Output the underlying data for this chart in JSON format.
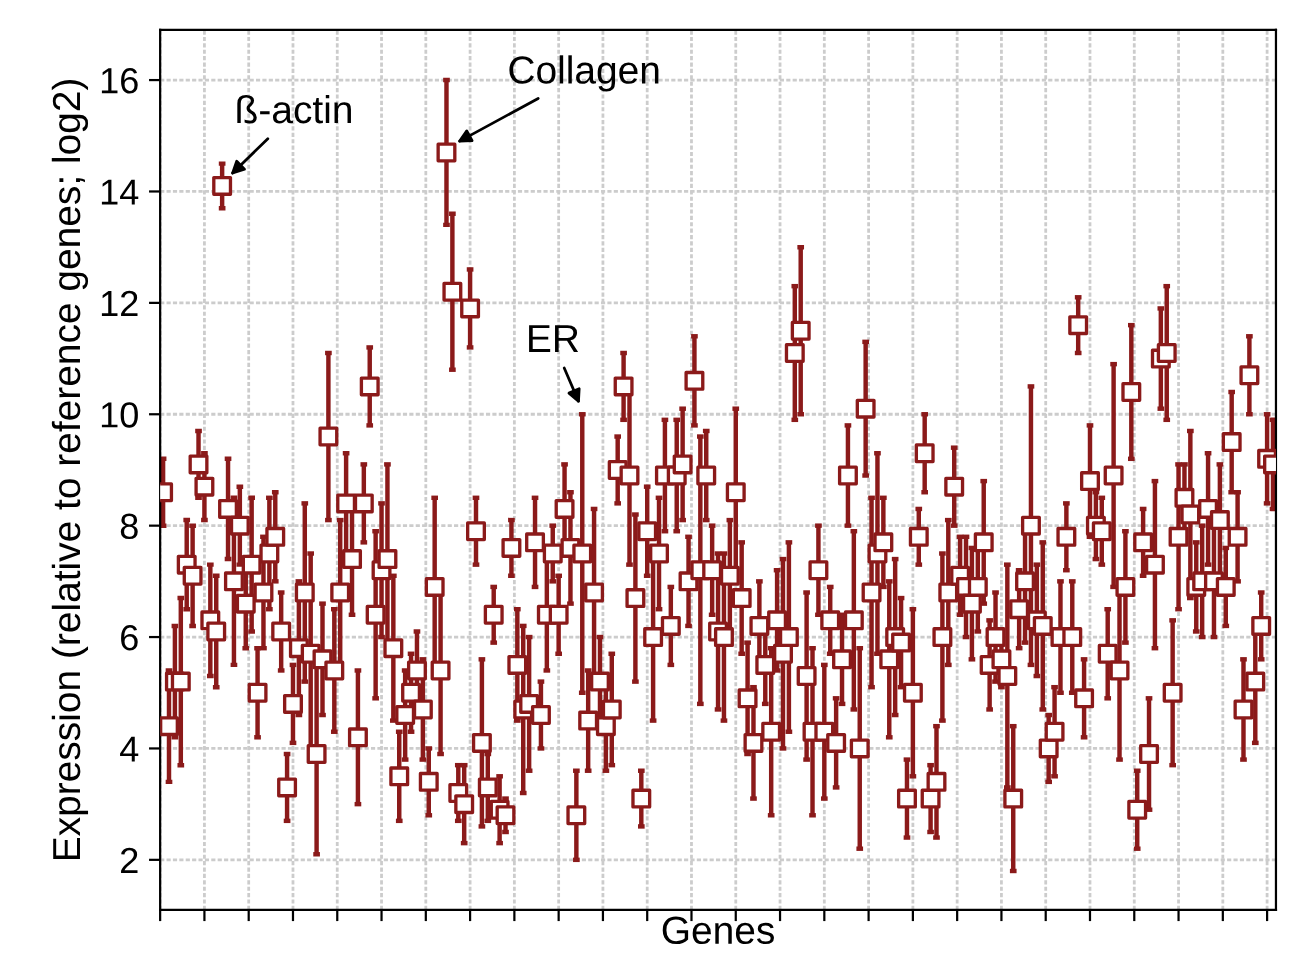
{
  "chart_data": {
    "type": "scatter",
    "xlabel": "Genes",
    "ylabel": "Expression (relative to reference genes; log2)",
    "categories": [
      null,
      null,
      null,
      null,
      null,
      null,
      null,
      null,
      null,
      null,
      null,
      null,
      null,
      null,
      null,
      null,
      null,
      null,
      null,
      null,
      null,
      null,
      null,
      null,
      null,
      null,
      null,
      null,
      null,
      null,
      null,
      null,
      null,
      null,
      null,
      null,
      null,
      null,
      null,
      null,
      null,
      null,
      null,
      null,
      null,
      null,
      null,
      null,
      null,
      null,
      null,
      null,
      null,
      null,
      null,
      null,
      null,
      null,
      null,
      null,
      null,
      null,
      null,
      null,
      null,
      null,
      null,
      null,
      null,
      null,
      null,
      null,
      null,
      null,
      null,
      null,
      null,
      null,
      null,
      null,
      null,
      null,
      null,
      null,
      null,
      null,
      null,
      null,
      null,
      null,
      null,
      null,
      null,
      null,
      null,
      null,
      null,
      null,
      null,
      null,
      null,
      null,
      null,
      null,
      null,
      null,
      null,
      null,
      null,
      null,
      null,
      null,
      null,
      null,
      null,
      null,
      null,
      null,
      null,
      null,
      null,
      null,
      null,
      null,
      null,
      null,
      null,
      null,
      null,
      null,
      null,
      null,
      null,
      null,
      null,
      null,
      null,
      null,
      null,
      null,
      null,
      null,
      null,
      null,
      null,
      null,
      null,
      null,
      null,
      null,
      null,
      null,
      null,
      null,
      null,
      null,
      null,
      null,
      null,
      null,
      null,
      null,
      null,
      null,
      null,
      null,
      null,
      null,
      null,
      null,
      null,
      null,
      null,
      null,
      null,
      null,
      null,
      null,
      null,
      null,
      null,
      null,
      null,
      null,
      null,
      null,
      null,
      null,
      null
    ],
    "series": [
      {
        "color": "#8b1a1a",
        "values": [
          8.6,
          4.4,
          5.2,
          5.2,
          7.3,
          7.1,
          9.1,
          8.7,
          6.3,
          6.1,
          14.1,
          8.3,
          7.0,
          8.0,
          6.6,
          7.3,
          5.0,
          6.8,
          7.5,
          7.8,
          6.1,
          3.3,
          4.8,
          5.8,
          6.8,
          5.7,
          3.9,
          5.6,
          9.6,
          5.4,
          6.8,
          8.4,
          7.4,
          4.2,
          8.4,
          10.5,
          6.4,
          7.2,
          7.4,
          5.8,
          3.5,
          4.6,
          5.0,
          5.4,
          4.7,
          3.4,
          6.9,
          5.4,
          14.7,
          12.2,
          3.2,
          3.0,
          11.9,
          7.9,
          4.1,
          3.3,
          6.4,
          2.9,
          2.8,
          7.6,
          5.5,
          4.7,
          4.8,
          7.7,
          4.6,
          6.4,
          7.5,
          6.4,
          8.3,
          7.6,
          2.8,
          7.5,
          4.5,
          6.8,
          5.2,
          4.4,
          4.7,
          9.0,
          10.5,
          8.9,
          6.7,
          3.1,
          7.9,
          6.0,
          7.5,
          8.9,
          6.2,
          8.9,
          9.1,
          7.0,
          10.6,
          7.2,
          8.9,
          7.2,
          6.1,
          6.0,
          7.1,
          8.6,
          6.7,
          4.9,
          4.1,
          6.2,
          5.5,
          4.3,
          6.3,
          5.7,
          6.0,
          11.1,
          11.5,
          5.3,
          4.3,
          7.2,
          4.3,
          6.3,
          4.1,
          5.6,
          8.9,
          6.3,
          4.0,
          10.1,
          6.8,
          7.5,
          7.7,
          5.6,
          6.0,
          5.9,
          3.1,
          5.0,
          7.8,
          9.3,
          3.1,
          3.4,
          6.0,
          6.8,
          8.7,
          7.1,
          6.9,
          6.6,
          6.9,
          7.7,
          5.5,
          6.0,
          5.6,
          5.3,
          3.1,
          6.5,
          7.0,
          8.0,
          6.3,
          6.2,
          4.0,
          4.3,
          6.0,
          7.8,
          6.0,
          11.6,
          4.9,
          8.8,
          8.0,
          7.9,
          5.7,
          8.9,
          5.4,
          6.9,
          10.4,
          2.9,
          7.7,
          3.9,
          7.3,
          11.0,
          11.1,
          5.0,
          7.8,
          8.5,
          8.2,
          6.9,
          7.0,
          8.3,
          7.0,
          8.1,
          6.9,
          9.5,
          7.8,
          4.7,
          10.7,
          5.2,
          6.2,
          9.2,
          9.1
        ],
        "errors": [
          0.6,
          1.0,
          1.0,
          1.5,
          0.8,
          0.9,
          0.6,
          0.6,
          1.0,
          1.0,
          0.4,
          0.9,
          1.5,
          0.7,
          0.8,
          1.2,
          0.8,
          1.0,
          1.0,
          0.8,
          0.7,
          0.6,
          0.7,
          1.2,
          1.6,
          1.8,
          1.8,
          1.0,
          1.5,
          1.1,
          1.3,
          0.9,
          1.0,
          1.2,
          0.7,
          0.7,
          1.5,
          1.2,
          1.7,
          1.3,
          0.8,
          0.8,
          0.7,
          0.7,
          0.9,
          0.6,
          1.6,
          1.5,
          1.3,
          1.4,
          0.5,
          0.7,
          0.7,
          0.6,
          1.5,
          0.6,
          0.5,
          0.6,
          0.3,
          0.5,
          1.0,
          1.5,
          1.2,
          0.8,
          0.6,
          1.0,
          0.5,
          0.7,
          0.8,
          1.0,
          0.8,
          2.5,
          0.9,
          1.5,
          0.8,
          0.8,
          1.0,
          0.6,
          0.6,
          1.6,
          1.5,
          0.5,
          0.8,
          1.5,
          1.0,
          1.0,
          0.7,
          1.0,
          1.0,
          0.8,
          0.8,
          2.4,
          0.8,
          0.8,
          1.4,
          1.5,
          1.0,
          1.5,
          1.0,
          1.0,
          1.0,
          0.8,
          0.7,
          1.5,
          0.9,
          1.7,
          1.7,
          1.2,
          1.5,
          1.5,
          1.5,
          0.8,
          1.2,
          0.6,
          0.8,
          0.8,
          0.9,
          1.6,
          1.8,
          1.2,
          1.7,
          1.8,
          0.8,
          1.4,
          1.4,
          0.8,
          0.7,
          1.5,
          0.5,
          0.7,
          0.6,
          1.0,
          1.5,
          1.3,
          0.7,
          0.7,
          0.9,
          1.0,
          0.8,
          1.1,
          0.8,
          0.8,
          0.5,
          2.0,
          1.3,
          0.7,
          1.1,
          2.5,
          1.0,
          1.5,
          0.6,
          0.8,
          1.0,
          0.6,
          1.0,
          0.5,
          0.7,
          1.0,
          0.6,
          0.6,
          0.8,
          2.0,
          1.6,
          1.0,
          1.2,
          0.7,
          0.6,
          1.0,
          1.5,
          0.9,
          1.2,
          1.3,
          1.3,
          0.6,
          1.5,
          0.8,
          1.0,
          1.0,
          1.0,
          1.0,
          0.7,
          0.9,
          0.8,
          0.9,
          0.7,
          1.1,
          0.6,
          0.8,
          0.8
        ]
      }
    ],
    "ylim": [
      1.1,
      16.9
    ],
    "yticks": [
      2,
      4,
      6,
      8,
      10,
      12,
      14,
      16
    ],
    "tick_labels": "y",
    "grid": true,
    "marker": "square",
    "legend": false,
    "annotations": [
      "ß-actin",
      "Collagen",
      "ER"
    ]
  }
}
